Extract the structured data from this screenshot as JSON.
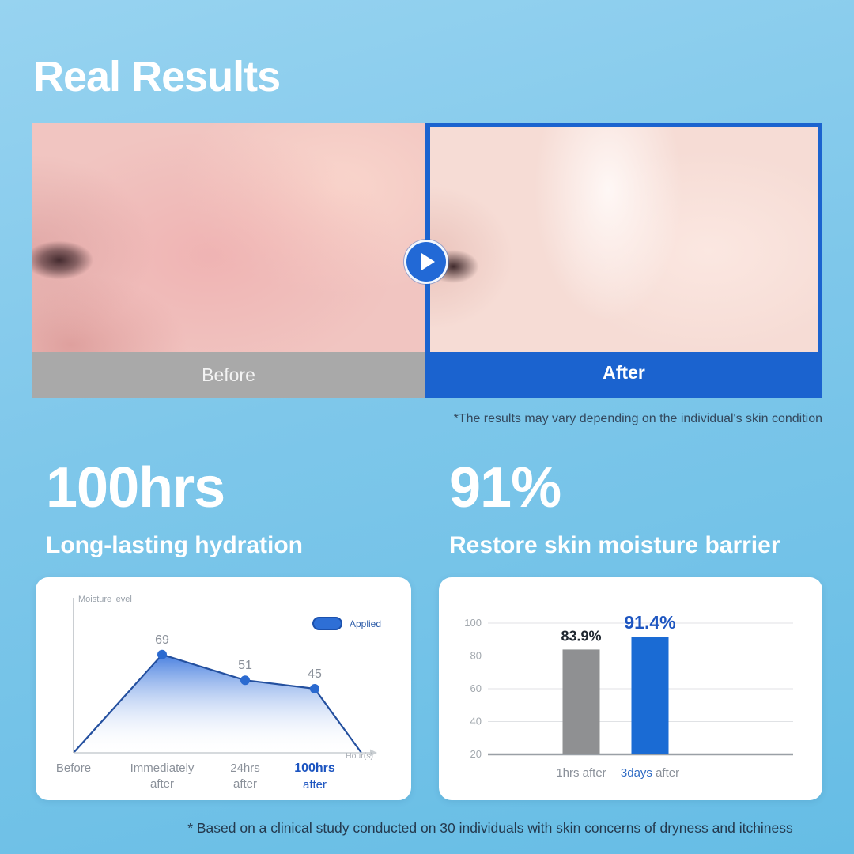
{
  "header": {
    "title": "Real Results"
  },
  "comparison": {
    "before_label": "Before",
    "after_label": "After",
    "disclaimer": "*The results may vary depending on the individual's skin condition"
  },
  "stats": [
    {
      "value": "100hrs",
      "caption": "Long-lasting hydration"
    },
    {
      "value": "91%",
      "caption": "Restore skin moisture barrier"
    }
  ],
  "footnote": "* Based on a clinical study conducted on 30 individuals with skin concerns of dryness and itchiness",
  "colors": {
    "accent_blue": "#1b63cf",
    "bar_gray": "#8f9092",
    "bar_blue": "#1a6bd4",
    "before_bar_gray": "#a9a9a9",
    "line_stroke": "#24509f",
    "dot_blue": "#2b6ad0",
    "highlight_text_blue": "#1d55c0",
    "muted_text_gray": "#8b919a"
  },
  "chart_data": [
    {
      "type": "area",
      "title": "",
      "ylabel": "Moisture level",
      "xlabel": "Hour(s)",
      "legend": [
        {
          "label": "Applied",
          "color": "#2e6fd6"
        }
      ],
      "categories": [
        "Before",
        "Immediately after",
        "24hrs after",
        "100hrs after"
      ],
      "values": [
        0,
        69,
        51,
        45
      ],
      "point_labels": [
        "",
        "69",
        "51",
        "45"
      ],
      "highlight_index": 3,
      "ylim": [
        0,
        85
      ],
      "grid": false,
      "legend_position": "top-right",
      "baseline_return": true
    },
    {
      "type": "bar",
      "title": "",
      "categories": [
        "1hrs after",
        "3days after"
      ],
      "values": [
        83.9,
        91.4
      ],
      "value_labels": [
        "83.9%",
        "91.4%"
      ],
      "bar_colors": [
        "#8f9092",
        "#1a6bd4"
      ],
      "highlight_index": 1,
      "yticks": [
        20,
        40,
        60,
        80,
        100
      ],
      "ylim": [
        20,
        100
      ],
      "grid": true
    }
  ]
}
